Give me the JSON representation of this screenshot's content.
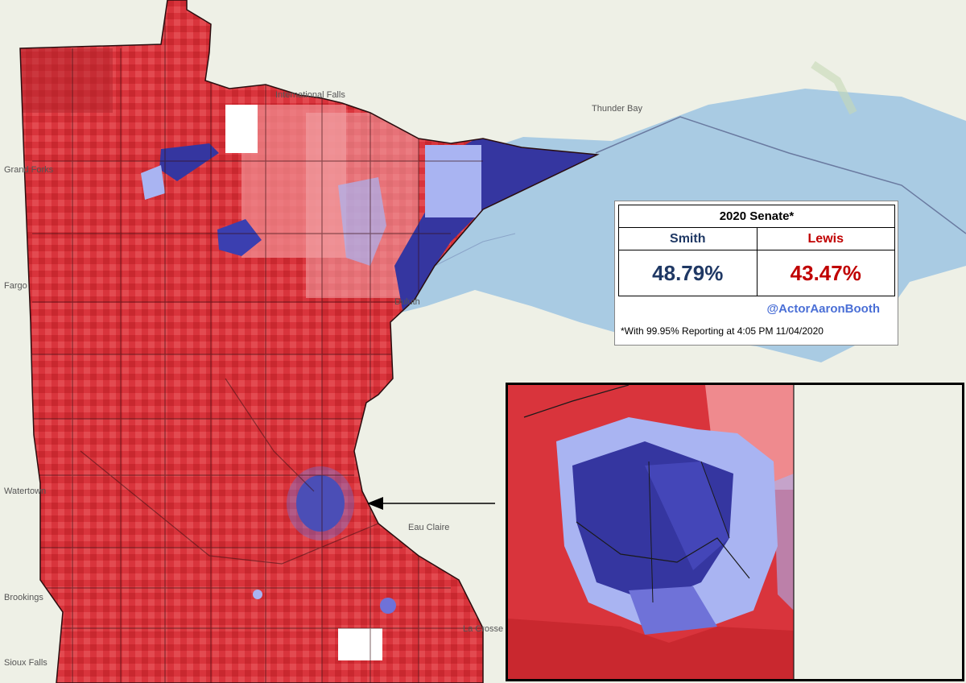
{
  "map": {
    "place_labels": [
      "Thunder Bay",
      "Grand Forks",
      "Fargo",
      "Watertown",
      "Brookings",
      "Sioux Falls",
      "Eau Claire",
      "La Crosse",
      "International Falls",
      "Duluth"
    ],
    "colors": {
      "lake": "#a9cbe3",
      "land": "#eef0e6",
      "strong_rep": "#b3232b",
      "rep": "#d9343c",
      "lean_rep": "#ef8a8e",
      "tie": "#ffffff",
      "lean_dem": "#a9b4f2",
      "dem": "#6f72d8",
      "strong_dem": "#3536a0"
    }
  },
  "results": {
    "title": "2020 Senate*",
    "candidates": [
      {
        "name": "Smith",
        "percent": "48.79%",
        "color": "#1f3864"
      },
      {
        "name": "Lewis",
        "percent": "43.47%",
        "color": "#c00000"
      }
    ],
    "credit": "@ActorAaronBooth",
    "footnote": "*With 99.95% Reporting at 4:05 PM 11/04/2020"
  },
  "inset": {
    "subject": "Twin Cities metro zoom"
  }
}
